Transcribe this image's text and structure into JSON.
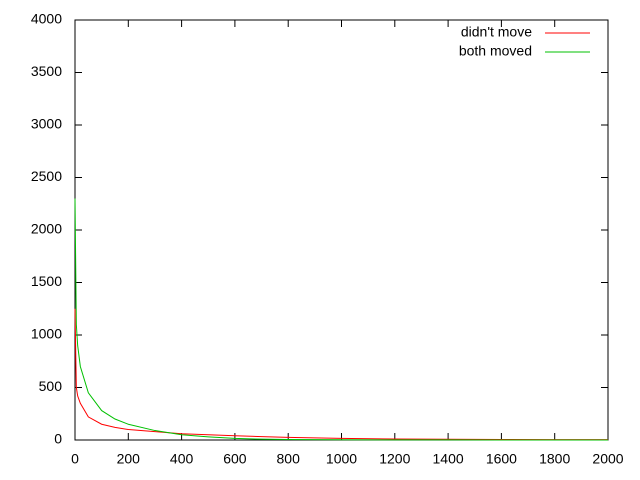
{
  "chart_data": {
    "type": "line",
    "x": [
      0,
      5,
      10,
      20,
      50,
      100,
      150,
      200,
      300,
      400,
      500,
      600,
      700,
      800,
      1000,
      1200,
      1400,
      1600,
      1800,
      2000
    ],
    "series": [
      {
        "name": "didn't move",
        "color": "#ff0000",
        "values": [
          1250,
          500,
          420,
          350,
          220,
          150,
          120,
          100,
          80,
          60,
          50,
          40,
          32,
          25,
          15,
          10,
          7,
          5,
          4,
          3
        ]
      },
      {
        "name": "both moved",
        "color": "#00c000",
        "values": [
          2300,
          1100,
          900,
          700,
          450,
          280,
          200,
          150,
          90,
          50,
          30,
          15,
          8,
          5,
          2,
          1,
          1,
          0,
          0,
          0
        ]
      }
    ],
    "xlim": [
      0,
      2000
    ],
    "xticks": [
      0,
      200,
      400,
      600,
      800,
      1000,
      1200,
      1400,
      1600,
      1800,
      2000
    ],
    "ylim": [
      0,
      4000
    ],
    "yticks": [
      0,
      500,
      1000,
      1500,
      2000,
      2500,
      3000,
      3500,
      4000
    ],
    "legend": "top-right",
    "grid": false
  }
}
